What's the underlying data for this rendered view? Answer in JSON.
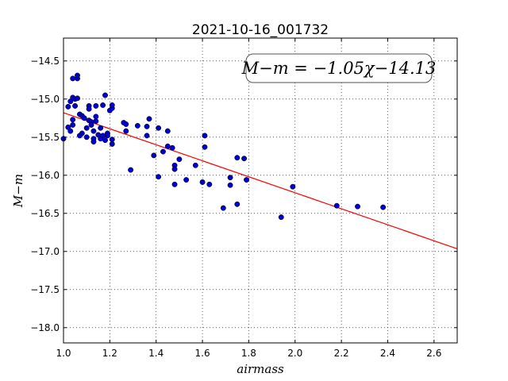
{
  "chart_data": {
    "type": "scatter",
    "title": "2021-10-16_001732",
    "xlabel": "airmass",
    "ylabel": "M−m",
    "xlim": [
      1.0,
      2.7
    ],
    "ylim": [
      -18.2,
      -14.2
    ],
    "y_inverted": true,
    "grid": true,
    "xticks": [
      1.0,
      1.2,
      1.4,
      1.6,
      1.8,
      2.0,
      2.2,
      2.4,
      2.6
    ],
    "xtick_labels": [
      "1.0",
      "1.2",
      "1.4",
      "1.6",
      "1.8",
      "2.0",
      "2.2",
      "2.4",
      "2.6"
    ],
    "yticks": [
      -14.5,
      -15.0,
      -15.5,
      -16.0,
      -16.5,
      -17.0,
      -17.5,
      -18.0
    ],
    "ytick_labels": [
      "−14.5",
      "−15.0",
      "−15.5",
      "−16.0",
      "−16.5",
      "−17.0",
      "−17.5",
      "−18.0"
    ],
    "annotation": "M−m = −1.05χ−14.13",
    "fit": {
      "slope": -1.05,
      "intercept": -14.13,
      "color": "#ff0000"
    },
    "point_color": "#0000cc",
    "points": [
      [
        1.0,
        -15.52
      ],
      [
        1.02,
        -15.37
      ],
      [
        1.02,
        -15.1
      ],
      [
        1.03,
        -15.03
      ],
      [
        1.03,
        -15.42
      ],
      [
        1.04,
        -14.73
      ],
      [
        1.04,
        -14.98
      ],
      [
        1.04,
        -15.27
      ],
      [
        1.04,
        -15.34
      ],
      [
        1.05,
        -15.0
      ],
      [
        1.05,
        -15.09
      ],
      [
        1.06,
        -14.73
      ],
      [
        1.06,
        -14.69
      ],
      [
        1.06,
        -14.99
      ],
      [
        1.07,
        -15.2
      ],
      [
        1.07,
        -15.48
      ],
      [
        1.08,
        -15.22
      ],
      [
        1.08,
        -15.45
      ],
      [
        1.09,
        -15.25
      ],
      [
        1.1,
        -15.38
      ],
      [
        1.1,
        -15.5
      ],
      [
        1.11,
        -15.09
      ],
      [
        1.11,
        -15.13
      ],
      [
        1.11,
        -15.28
      ],
      [
        1.12,
        -15.3
      ],
      [
        1.12,
        -15.34
      ],
      [
        1.13,
        -15.42
      ],
      [
        1.13,
        -15.56
      ],
      [
        1.13,
        -15.52
      ],
      [
        1.14,
        -15.09
      ],
      [
        1.14,
        -15.23
      ],
      [
        1.14,
        -15.29
      ],
      [
        1.15,
        -15.47
      ],
      [
        1.16,
        -15.52
      ],
      [
        1.16,
        -15.38
      ],
      [
        1.17,
        -15.08
      ],
      [
        1.17,
        -15.48
      ],
      [
        1.18,
        -14.95
      ],
      [
        1.18,
        -15.54
      ],
      [
        1.19,
        -15.45
      ],
      [
        1.19,
        -15.48
      ],
      [
        1.2,
        -15.15
      ],
      [
        1.21,
        -15.12
      ],
      [
        1.21,
        -15.08
      ],
      [
        1.21,
        -15.53
      ],
      [
        1.21,
        -15.59
      ],
      [
        1.26,
        -15.31
      ],
      [
        1.27,
        -15.33
      ],
      [
        1.27,
        -15.42
      ],
      [
        1.29,
        -15.93
      ],
      [
        1.32,
        -15.35
      ],
      [
        1.36,
        -15.36
      ],
      [
        1.36,
        -15.48
      ],
      [
        1.37,
        -15.26
      ],
      [
        1.39,
        -15.74
      ],
      [
        1.41,
        -15.38
      ],
      [
        1.41,
        -16.02
      ],
      [
        1.43,
        -15.69
      ],
      [
        1.45,
        -15.42
      ],
      [
        1.45,
        -15.62
      ],
      [
        1.47,
        -15.64
      ],
      [
        1.48,
        -15.87
      ],
      [
        1.48,
        -15.92
      ],
      [
        1.48,
        -16.12
      ],
      [
        1.5,
        -15.79
      ],
      [
        1.53,
        -16.06
      ],
      [
        1.57,
        -15.87
      ],
      [
        1.6,
        -16.09
      ],
      [
        1.61,
        -15.48
      ],
      [
        1.61,
        -15.63
      ],
      [
        1.63,
        -16.12
      ],
      [
        1.69,
        -16.43
      ],
      [
        1.72,
        -16.03
      ],
      [
        1.72,
        -16.13
      ],
      [
        1.75,
        -16.38
      ],
      [
        1.75,
        -15.77
      ],
      [
        1.78,
        -15.78
      ],
      [
        1.79,
        -16.06
      ],
      [
        1.94,
        -16.55
      ],
      [
        1.99,
        -16.15
      ],
      [
        2.18,
        -16.4
      ],
      [
        2.27,
        -16.41
      ],
      [
        2.38,
        -16.42
      ]
    ]
  }
}
